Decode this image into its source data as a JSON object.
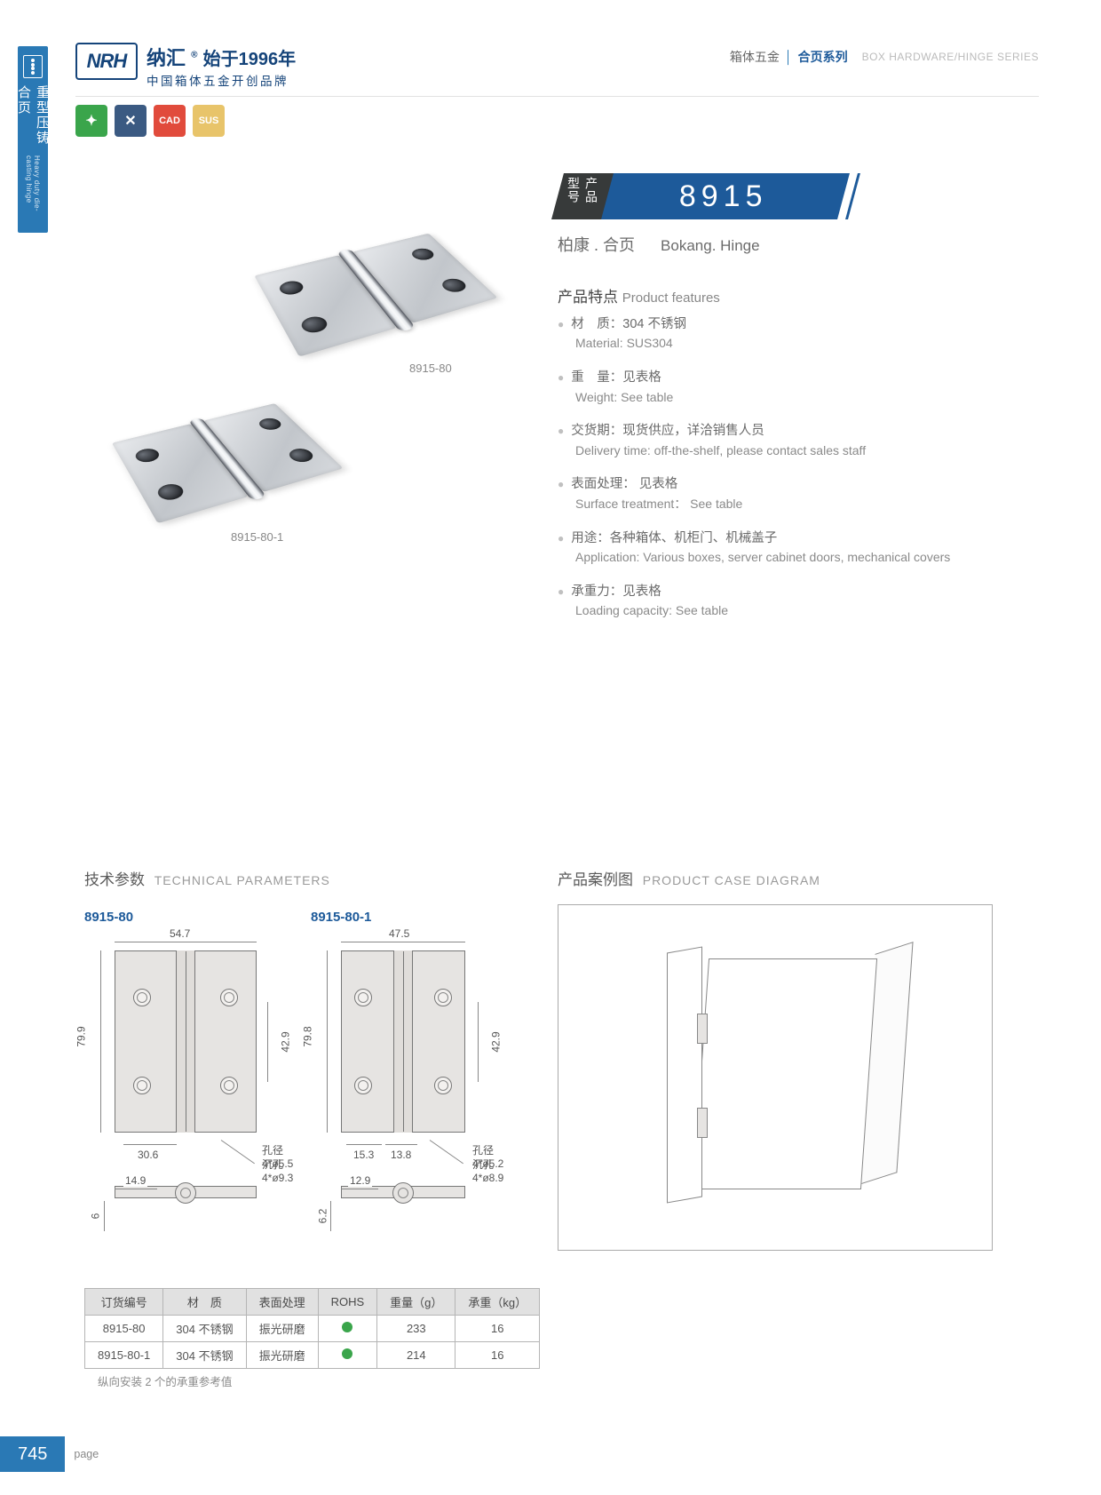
{
  "page": {
    "number": "745",
    "label": "page"
  },
  "side_tab": {
    "cn": "重型压铸合页",
    "en": "Heavy duty die-casting hinge"
  },
  "header": {
    "logo_text": "NRH",
    "brand_cn_1": "纳汇",
    "brand_cn_2": "始于1996年",
    "brand_cn_3": "中国箱体五金开创品牌",
    "crumb_cn_1": "箱体五金",
    "crumb_cn_2": "合页系列",
    "crumb_en": "BOX HARDWARE/HINGE SERIES"
  },
  "icon_row": [
    {
      "label": "✦",
      "bg": "#3aa54b"
    },
    {
      "label": "✕",
      "bg": "#3b5a82"
    },
    {
      "label": "CAD",
      "bg": "#e14b3c"
    },
    {
      "label": "SUS",
      "bg": "#e8c46a"
    }
  ],
  "product": {
    "tag": "产品\n型号",
    "number": "8915",
    "name_cn": "柏康 . 合页",
    "name_en": "Bokang. Hinge",
    "features_title_cn": "产品特点",
    "features_title_en": "Product features",
    "features": [
      {
        "cn": "材　质：304 不锈钢",
        "en": "Material: SUS304"
      },
      {
        "cn": "重　量：见表格",
        "en": "Weight: See table"
      },
      {
        "cn": "交货期：现货供应，详洽销售人员",
        "en": "Delivery time: off-the-shelf, please contact sales staff"
      },
      {
        "cn": "表面处理： 见表格",
        "en": "Surface treatment： See table"
      },
      {
        "cn": "用途：各种箱体、机柜门、机械盖子",
        "en": "Application: Various boxes, server cabinet doors, mechanical covers"
      },
      {
        "cn": "承重力：见表格",
        "en": "Loading capacity: See table"
      }
    ],
    "image_labels": {
      "top": "8915-80",
      "bottom": "8915-80-1"
    }
  },
  "tech": {
    "title_cn": "技术参数",
    "title_en": "TECHNICAL PARAMETERS",
    "model_a": {
      "label": "8915-80",
      "dims": {
        "width": "54.7",
        "height": "79.9",
        "hole_span_y": "42.9",
        "hole_span_x": "30.6",
        "hole_note_1": "孔径 4*ø5.5",
        "hole_note_2": "沉孔 4*ø9.3",
        "side_w": "14.9",
        "side_h": "6"
      }
    },
    "model_b": {
      "label": "8915-80-1",
      "dims": {
        "width": "47.5",
        "height": "79.8",
        "hole_span_y": "42.9",
        "hole_span_x1": "15.3",
        "hole_span_x2": "13.8",
        "hole_note_1": "孔径 4*ø5.2",
        "hole_note_2": "沉孔 4*ø8.9",
        "side_w": "12.9",
        "side_h": "6.2"
      }
    }
  },
  "case": {
    "title_cn": "产品案例图",
    "title_en": "PRODUCT CASE DIAGRAM"
  },
  "table": {
    "headers": [
      "订货编号",
      "材　质",
      "表面处理",
      "ROHS",
      "重量（g）",
      "承重（kg）"
    ],
    "rows": [
      {
        "code": "8915-80",
        "material": "304 不锈钢",
        "surface": "振光研磨",
        "rohs_color": "#3aa54b",
        "weight": "233",
        "load": "16"
      },
      {
        "code": "8915-80-1",
        "material": "304 不锈钢",
        "surface": "振光研磨",
        "rohs_color": "#3aa54b",
        "weight": "214",
        "load": "16"
      }
    ],
    "note": "纵向安装 2 个的承重参考值"
  },
  "colors": {
    "brand_blue": "#1d5a9a",
    "side_blue": "#2a79b5",
    "gray_text": "#6b6b6b",
    "light_gray": "#8a8a8a",
    "drawing_fill": "#e6e4e2",
    "drawing_stroke": "#777777",
    "table_border": "#b5b5b5",
    "table_header_bg": "#e1e1e1"
  }
}
